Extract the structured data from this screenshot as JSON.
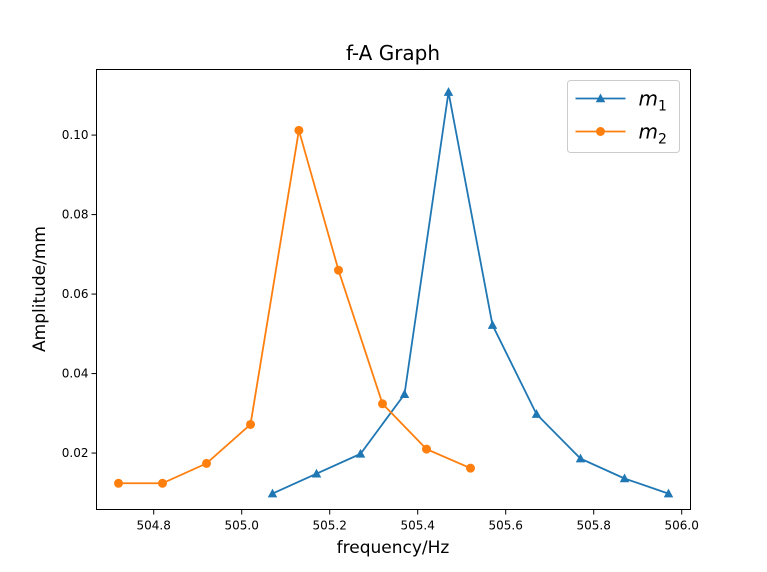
{
  "chart_data": {
    "type": "line",
    "title": "f-A Graph",
    "xlabel": "frequency/Hz",
    "ylabel": "Amplitude/mm",
    "xlim": [
      504.67,
      506.02
    ],
    "ylim": [
      0.0058,
      0.1165
    ],
    "xticks": [
      504.8,
      505.0,
      505.2,
      505.4,
      505.6,
      505.8,
      506.0
    ],
    "xtick_labels": [
      "504.8",
      "505.0",
      "505.2",
      "505.4",
      "505.6",
      "505.8",
      "506.0"
    ],
    "yticks": [
      0.02,
      0.04,
      0.06,
      0.08,
      0.1
    ],
    "ytick_labels": [
      "0.02",
      "0.04",
      "0.06",
      "0.08",
      "0.10"
    ],
    "grid": false,
    "legend_position": "upper-right",
    "series": [
      {
        "name": "m",
        "name_sub": "1",
        "color": "#1f77b4",
        "marker": "triangle",
        "x": [
          505.07,
          505.17,
          505.27,
          505.37,
          505.47,
          505.57,
          505.67,
          505.77,
          505.87,
          505.97
        ],
        "y": [
          0.0098,
          0.0148,
          0.0198,
          0.0348,
          0.1108,
          0.0522,
          0.0298,
          0.0186,
          0.0136,
          0.0098
        ]
      },
      {
        "name": "m",
        "name_sub": "2",
        "color": "#ff7f0e",
        "marker": "circle",
        "x": [
          504.72,
          504.82,
          504.92,
          505.02,
          505.13,
          505.22,
          505.32,
          505.42,
          505.52
        ],
        "y": [
          0.0124,
          0.0124,
          0.0174,
          0.0272,
          0.1012,
          0.066,
          0.0324,
          0.021,
          0.0162
        ]
      }
    ]
  }
}
